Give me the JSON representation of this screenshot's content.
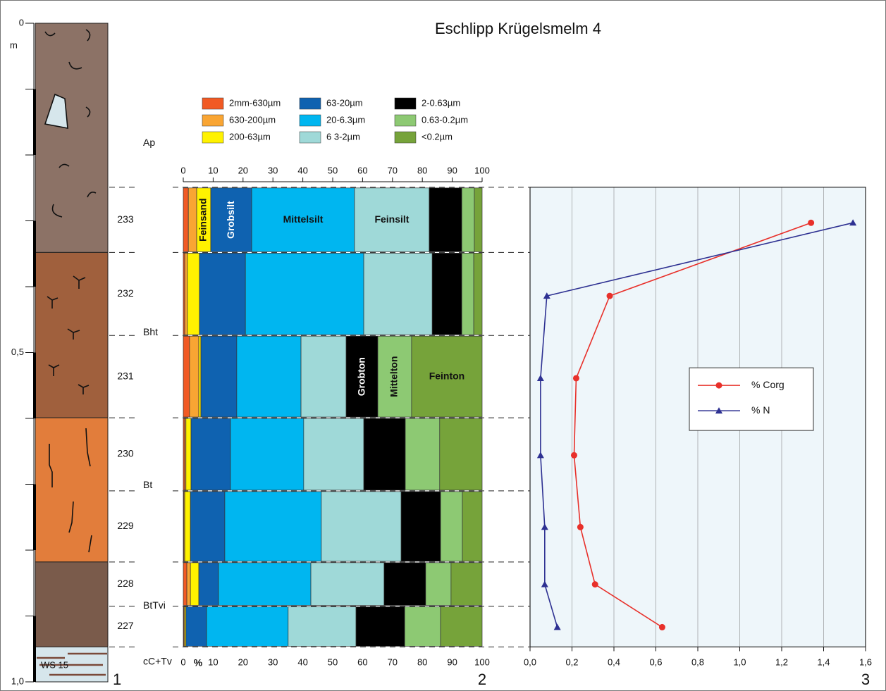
{
  "title": "Eschlipp Krügelsmelm 4",
  "profile": {
    "unit": "m",
    "ylim": [
      0,
      1.0
    ],
    "yticks": [
      0,
      {
        "value": 0.5,
        "label": "0,5"
      },
      {
        "value": 1.0,
        "label": "1,0"
      }
    ],
    "yminor": [
      0.1,
      0.2,
      0.3,
      0.4,
      0.6,
      0.7,
      0.8,
      0.9
    ],
    "panel_label": "1",
    "layers": [
      {
        "top": 0,
        "bottom": 0.348,
        "color": "#8c7266"
      },
      {
        "top": 0.348,
        "bottom": 0.599,
        "color": "#a0603d"
      },
      {
        "top": 0.599,
        "bottom": 0.818,
        "color": "#e27d3b"
      },
      {
        "top": 0.818,
        "bottom": 0.947,
        "color": "#7a5b4b"
      },
      {
        "top": 0.947,
        "bottom": 1.0,
        "color": "#d6e6ec",
        "label": "WS 15"
      }
    ],
    "horizons": [
      {
        "label": "Ap",
        "depth": 0.182
      },
      {
        "label": "Bht",
        "depth": 0.47
      },
      {
        "label": "Bt",
        "depth": 0.702
      },
      {
        "label": "BtTvi",
        "depth": 0.885
      },
      {
        "label": "cC+Tv",
        "depth": 0.97
      }
    ]
  },
  "chart_data": [
    {
      "type": "bar",
      "orientation": "horizontal",
      "stacked": true,
      "panel_label": "2",
      "xlabel": "%",
      "categories": [
        "233",
        "232",
        "231",
        "230",
        "229",
        "228",
        "227"
      ],
      "depth_bins": [
        0.249,
        0.348,
        0.474,
        0.599,
        0.71,
        0.818,
        0.885,
        0.947
      ],
      "xlim": [
        0,
        100
      ],
      "xticks": [
        0,
        10,
        20,
        30,
        40,
        50,
        60,
        70,
        80,
        90,
        100
      ],
      "series": [
        {
          "name": "2mm-630µm",
          "color": "#f15a24",
          "values": [
            1.7,
            0.5,
            2.1,
            0.5,
            0.2,
            1.2,
            0.2
          ]
        },
        {
          "name": "630-200µm",
          "color": "#f9a533",
          "values": [
            2.8,
            0.9,
            3.1,
            0.4,
            0.3,
            1.2,
            0.3
          ]
        },
        {
          "name": "200-63µm",
          "color": "#fff200",
          "values": [
            4.7,
            4.0,
            0.7,
            1.7,
            1.9,
            2.8,
            0.4
          ]
        },
        {
          "name": "63-20µm",
          "color": "#0f62b0",
          "values": [
            13.7,
            15.4,
            12.0,
            13.2,
            11.5,
            6.6,
            6.9
          ]
        },
        {
          "name": "20-6.3µm",
          "color": "#00b6f0",
          "values": [
            34.4,
            39.6,
            21.5,
            24.5,
            32.3,
            30.9,
            27.3
          ]
        },
        {
          "name": "6 3-2µm",
          "color": "#9fd9d8",
          "values": [
            25.0,
            22.9,
            15.1,
            20.1,
            26.7,
            24.5,
            22.7
          ]
        },
        {
          "name": "2-0.63µm",
          "color": "#000000",
          "values": [
            10.9,
            9.9,
            10.6,
            13.9,
            13.2,
            13.9,
            16.3
          ]
        },
        {
          "name": "0.63-0.2µm",
          "color": "#8dc973",
          "values": [
            4.2,
            4.0,
            11.3,
            11.5,
            7.3,
            8.5,
            12.0
          ]
        },
        {
          "name": "<0.2µm",
          "color": "#76a33a",
          "values": [
            2.6,
            2.8,
            23.6,
            14.2,
            6.6,
            10.4,
            13.9
          ]
        }
      ],
      "annotations": [
        {
          "text": "Feinsand",
          "category": 0,
          "series": 2
        },
        {
          "text": "Grobsilt",
          "category": 0,
          "series": 3
        },
        {
          "text": "Mittelsilt",
          "category": 0,
          "series": 4
        },
        {
          "text": "Feinsilt",
          "category": 0,
          "series": 5
        },
        {
          "text": "Grobton",
          "category": 2,
          "series": 6
        },
        {
          "text": "Mittelton",
          "category": 2,
          "series": 7
        },
        {
          "text": "Feinton",
          "category": 2,
          "series": 8
        }
      ]
    },
    {
      "type": "line",
      "orientation": "horizontal",
      "panel_label": "3",
      "background": "#eef6fa",
      "grid": true,
      "legend": "center-right",
      "xlim": [
        0,
        1.6
      ],
      "xticks": [
        {
          "value": 0,
          "label": "0,0"
        },
        {
          "value": 0.2,
          "label": "0,2"
        },
        {
          "value": 0.4,
          "label": "0,4"
        },
        {
          "value": 0.6,
          "label": "0,6"
        },
        {
          "value": 0.8,
          "label": "0,8"
        },
        {
          "value": 1.0,
          "label": "1,0"
        },
        {
          "value": 1.2,
          "label": "1,2"
        },
        {
          "value": 1.4,
          "label": "1,4"
        },
        {
          "value": 1.6,
          "label": "1,6"
        }
      ],
      "y": [
        0.303,
        0.414,
        0.539,
        0.656,
        0.765,
        0.852,
        0.917
      ],
      "series": [
        {
          "name": "% Corg",
          "color": "#e8302a",
          "marker": "circle",
          "values": [
            1.34,
            0.38,
            0.22,
            0.21,
            0.24,
            0.31,
            0.63
          ]
        },
        {
          "name": "% N",
          "color": "#2e3192",
          "marker": "triangle",
          "values": [
            1.54,
            0.08,
            0.05,
            0.05,
            0.07,
            0.07,
            0.13
          ]
        }
      ]
    }
  ]
}
